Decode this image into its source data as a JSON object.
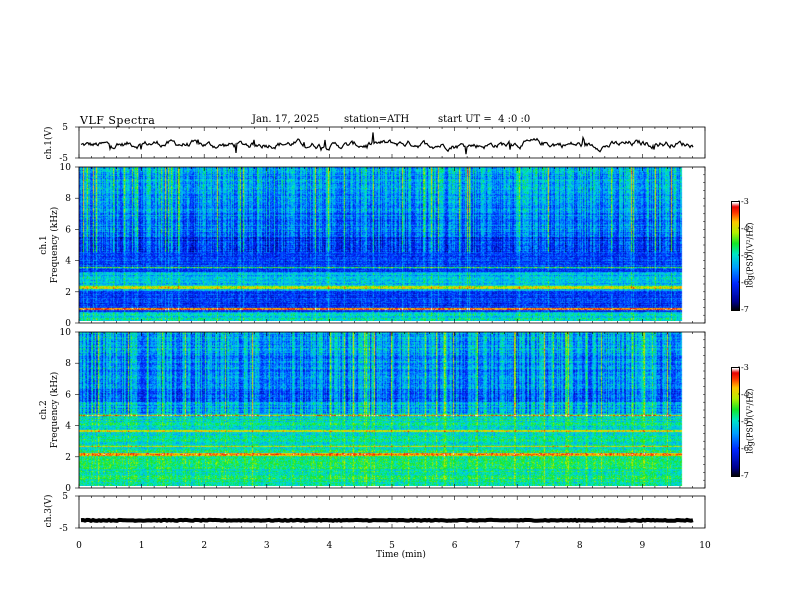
{
  "header": {
    "title": "VLF Spectra",
    "date": "Jan. 17, 2025",
    "station": "station=ATH",
    "start": "start UT =  4 :0 :0"
  },
  "chart_data": [
    {
      "type": "line",
      "panel": "ch1-waveform",
      "ylabel": "ch.1(V)",
      "ylim": [
        -5,
        5
      ],
      "yticks": [
        "5",
        "-5"
      ],
      "xlim": [
        0,
        10
      ]
    },
    {
      "type": "heatmap",
      "panel": "ch1-spectrogram",
      "ylabel_channel": "ch.1",
      "ylabel": "Frequency  (kHz)",
      "ylim": [
        0,
        10
      ],
      "yticks": [
        "0",
        "2",
        "4",
        "6",
        "8",
        "10"
      ],
      "xlim": [
        0,
        9.8
      ],
      "colorbar": {
        "label": "log(PSD)(V²/Hz)",
        "range": [
          -7,
          -3
        ],
        "ticks": [
          "-3",
          "-4",
          "-5",
          "-6",
          "-7"
        ]
      }
    },
    {
      "type": "heatmap",
      "panel": "ch2-spectrogram",
      "ylabel_channel": "ch.2",
      "ylabel": "Frequency  (kHz)",
      "ylim": [
        0,
        10
      ],
      "yticks": [
        "0",
        "2",
        "4",
        "6",
        "8",
        "10"
      ],
      "xlim": [
        0,
        9.8
      ],
      "colorbar": {
        "label": "log(PSD)(V²/Hz)",
        "range": [
          -7,
          -3
        ],
        "ticks": [
          "-3",
          "-4",
          "-5",
          "-6",
          "-7"
        ]
      }
    },
    {
      "type": "line",
      "panel": "ch3-waveform",
      "ylabel": "ch.3(V)",
      "ylim": [
        -5,
        5
      ],
      "yticks": [
        "5",
        "-5"
      ],
      "xlabel": "Time  (min)",
      "xlim": [
        0,
        10
      ],
      "xticks": [
        "0",
        "1",
        "2",
        "3",
        "4",
        "5",
        "6",
        "7",
        "8",
        "9",
        "10"
      ]
    }
  ]
}
